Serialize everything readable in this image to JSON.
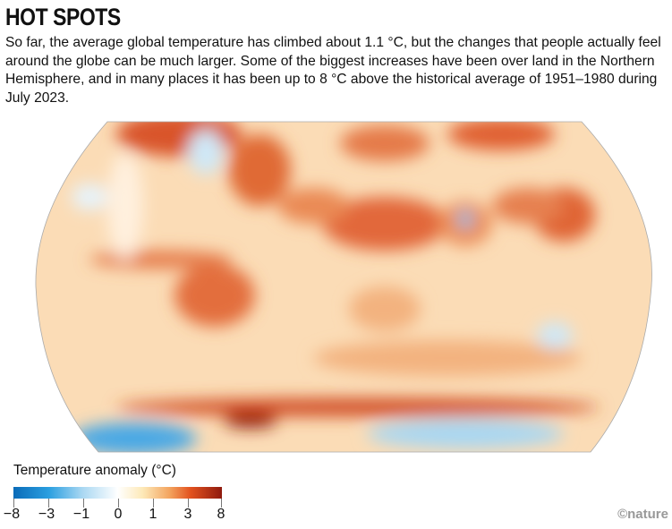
{
  "title": "HOT SPOTS",
  "description": "So far, the average global temperature has climbed about 1.1 °C, but the changes that people actually feel around the globe can be much larger. Some of the biggest increases have been over land in the Northern Hemisphere, and in many places it has been up to 8 °C above the historical average of 1951–1980 during July 2023.",
  "legend": {
    "title": "Temperature anomaly (°C)",
    "ticks": [
      "−8",
      "−3",
      "−1",
      "0",
      "1",
      "3",
      "8"
    ],
    "colors": [
      "#0a6bb8",
      "#2a9fe0",
      "#a9d7f2",
      "#ffffff",
      "#fde9b8",
      "#f3a35e",
      "#e2521f",
      "#8f1a0e"
    ]
  },
  "credit": "©nature"
}
